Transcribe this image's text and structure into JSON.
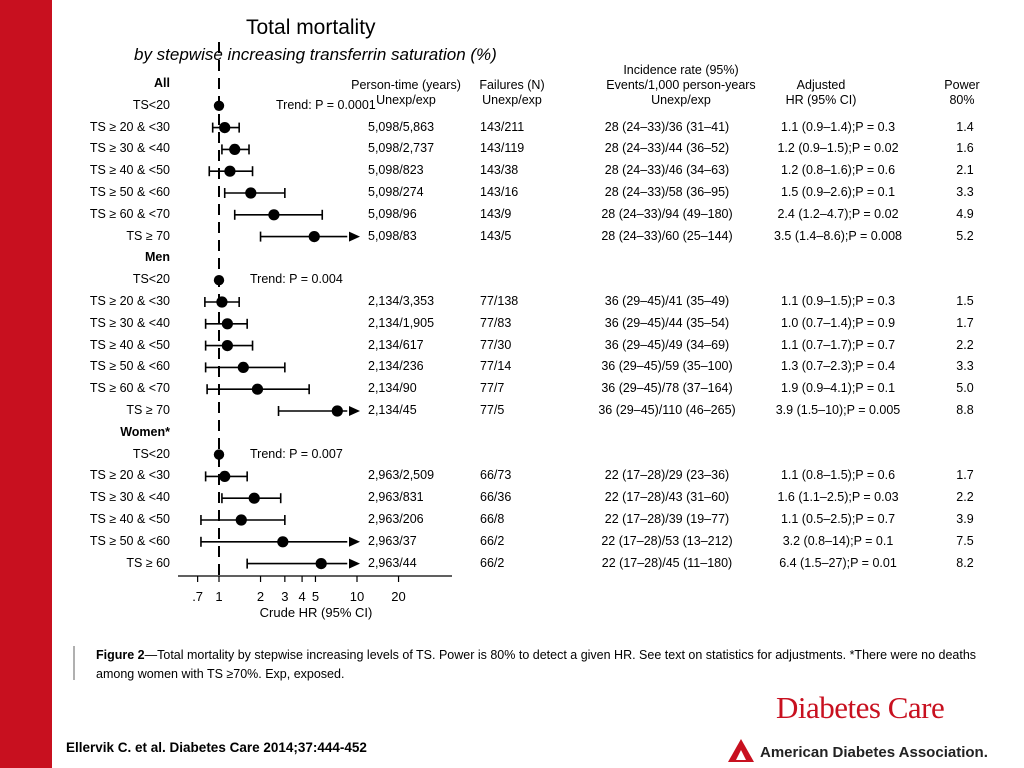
{
  "slide": {
    "citation": "Ellervik C. et al. Diabetes Care 2014;37:444-452",
    "journal_logo": "Diabetes Care",
    "publisher_logo": "American Diabetes Association.",
    "sidebar_color": "#c8101f"
  },
  "figure": {
    "title": "Total mortality",
    "subtitle": "by stepwise increasing transferrin saturation (%)",
    "caption_label": "Figure 2",
    "caption_text": "—Total mortality by stepwise increasing levels of TS. Power is 80% to detect a given HR. See text on statistics for adjustments. *There were no deaths among women with TS ≥70%. Exp, exposed."
  },
  "columns": {
    "person_time": [
      "Person-time (years)",
      "Unexp/exp"
    ],
    "failures": [
      "Failures (N)",
      "Unexp/exp"
    ],
    "incidence": [
      "Incidence rate (95%)",
      "Events/1,000 person-years",
      "Unexp/exp"
    ],
    "adjusted": [
      "Adjusted",
      "HR (95% CI)"
    ],
    "power": [
      "Power",
      "80%"
    ]
  },
  "chart_data": {
    "type": "forest",
    "xlabel": "Crude HR (95% CI)",
    "x_scale": "log",
    "x_ticks": [
      0.7,
      1,
      2,
      3,
      4,
      5,
      10,
      20
    ],
    "x_tick_labels": [
      ".7",
      "1",
      "2",
      "3",
      "4",
      "5",
      "10",
      "20"
    ],
    "reference_line": 1,
    "groups": [
      {
        "name": "All",
        "reference": "TS<20",
        "trend": "Trend: P = 0.0001",
        "rows": [
          {
            "label": "TS ≥ 20 & <30",
            "hr": 1.1,
            "lo": 0.9,
            "hi": 1.4,
            "arrow": false,
            "person_time": "5,098/5,863",
            "failures": "143/211",
            "incidence": "28 (24–33)/36 (31–41)",
            "adjusted": "1.1 (0.9–1.4);P = 0.3",
            "power": "1.4"
          },
          {
            "label": "TS ≥ 30 & <40",
            "hr": 1.3,
            "lo": 1.05,
            "hi": 1.65,
            "arrow": false,
            "person_time": "5,098/2,737",
            "failures": "143/119",
            "incidence": "28 (24–33)/44 (36–52)",
            "adjusted": "1.2 (0.9–1.5);P = 0.02",
            "power": "1.6"
          },
          {
            "label": "TS ≥ 40 & <50",
            "hr": 1.2,
            "lo": 0.85,
            "hi": 1.75,
            "arrow": false,
            "person_time": "5,098/823",
            "failures": "143/38",
            "incidence": "28 (24–33)/46 (34–63)",
            "adjusted": "1.2 (0.8–1.6);P = 0.6",
            "power": "2.1"
          },
          {
            "label": "TS ≥ 50 & <60",
            "hr": 1.7,
            "lo": 1.1,
            "hi": 3.0,
            "arrow": false,
            "person_time": "5,098/274",
            "failures": "143/16",
            "incidence": "28 (24–33)/58 (36–95)",
            "adjusted": "1.5 (0.9–2.6);P = 0.1",
            "power": "3.3"
          },
          {
            "label": "TS ≥ 60 & <70",
            "hr": 2.5,
            "lo": 1.3,
            "hi": 5.6,
            "arrow": false,
            "person_time": "5,098/96",
            "failures": "143/9",
            "incidence": "28 (24–33)/94 (49–180)",
            "adjusted": "2.4 (1.2–4.7);P = 0.02",
            "power": "4.9"
          },
          {
            "label": "TS ≥ 70",
            "hr": 4.9,
            "lo": 2.0,
            "hi": 8.5,
            "arrow": true,
            "person_time": "5,098/83",
            "failures": "143/5",
            "incidence": "28 (24–33)/60 (25–144)",
            "adjusted": "3.5 (1.4–8.6);P = 0.008",
            "power": "5.2"
          }
        ]
      },
      {
        "name": "Men",
        "reference": "TS<20",
        "trend": "Trend: P = 0.004",
        "rows": [
          {
            "label": "TS ≥ 20 & <30",
            "hr": 1.05,
            "lo": 0.79,
            "hi": 1.4,
            "arrow": false,
            "person_time": "2,134/3,353",
            "failures": "77/138",
            "incidence": "36 (29–45)/41 (35–49)",
            "adjusted": "1.1 (0.9–1.5);P = 0.3",
            "power": "1.5"
          },
          {
            "label": "TS ≥ 30 & <40",
            "hr": 1.15,
            "lo": 0.8,
            "hi": 1.6,
            "arrow": false,
            "person_time": "2,134/1,905",
            "failures": "77/83",
            "incidence": "36 (29–45)/44 (35–54)",
            "adjusted": "1.0 (0.7–1.4);P = 0.9",
            "power": "1.7"
          },
          {
            "label": "TS ≥ 40 & <50",
            "hr": 1.15,
            "lo": 0.8,
            "hi": 1.75,
            "arrow": false,
            "person_time": "2,134/617",
            "failures": "77/30",
            "incidence": "36 (29–45)/49 (34–69)",
            "adjusted": "1.1 (0.7–1.7);P = 0.7",
            "power": "2.2"
          },
          {
            "label": "TS ≥ 50 & <60",
            "hr": 1.5,
            "lo": 0.8,
            "hi": 3.0,
            "arrow": false,
            "person_time": "2,134/236",
            "failures": "77/14",
            "incidence": "36 (29–45)/59 (35–100)",
            "adjusted": "1.3 (0.7–2.3);P = 0.4",
            "power": "3.3"
          },
          {
            "label": "TS ≥ 60 & <70",
            "hr": 1.9,
            "lo": 0.82,
            "hi": 4.5,
            "arrow": false,
            "person_time": "2,134/90",
            "failures": "77/7",
            "incidence": "36 (29–45)/78 (37–164)",
            "adjusted": "1.9 (0.9–4.1);P = 0.1",
            "power": "5.0"
          },
          {
            "label": "TS ≥ 70",
            "hr": 7.2,
            "lo": 2.7,
            "hi": 8.5,
            "arrow": true,
            "person_time": "2,134/45",
            "failures": "77/5",
            "incidence": "36 (29–45)/110 (46–265)",
            "adjusted": "3.9 (1.5–10);P = 0.005",
            "power": "8.8"
          }
        ]
      },
      {
        "name": "Women*",
        "reference": "TS<20",
        "trend": "Trend: P = 0.007",
        "rows": [
          {
            "label": "TS ≥ 20 & <30",
            "hr": 1.1,
            "lo": 0.8,
            "hi": 1.6,
            "arrow": false,
            "person_time": "2,963/2,509",
            "failures": "66/73",
            "incidence": "22 (17–28)/29 (23–36)",
            "adjusted": "1.1 (0.8–1.5);P = 0.6",
            "power": "1.7"
          },
          {
            "label": "TS ≥ 30 & <40",
            "hr": 1.8,
            "lo": 1.05,
            "hi": 2.8,
            "arrow": false,
            "person_time": "2,963/831",
            "failures": "66/36",
            "incidence": "22 (17–28)/43 (31–60)",
            "adjusted": "1.6 (1.1–2.5);P = 0.03",
            "power": "2.2"
          },
          {
            "label": "TS ≥ 40 & <50",
            "hr": 1.45,
            "lo": 0.74,
            "hi": 3.0,
            "arrow": false,
            "person_time": "2,963/206",
            "failures": "66/8",
            "incidence": "22 (17–28)/39 (19–77)",
            "adjusted": "1.1 (0.5–2.5);P = 0.7",
            "power": "3.9"
          },
          {
            "label": "TS ≥ 50 & <60",
            "hr": 2.9,
            "lo": 0.74,
            "hi": 8.5,
            "arrow": true,
            "person_time": "2,963/37",
            "failures": "66/2",
            "incidence": "22 (17–28)/53 (13–212)",
            "adjusted": "3.2 (0.8–14);P = 0.1",
            "power": "7.5"
          },
          {
            "label": "TS ≥ 60",
            "hr": 5.5,
            "lo": 1.6,
            "hi": 8.5,
            "arrow": true,
            "person_time": "2,963/44",
            "failures": "66/2",
            "incidence": "22 (17–28)/45 (11–180)",
            "adjusted": "6.4 (1.5–27);P = 0.01",
            "power": "8.2"
          }
        ]
      }
    ]
  }
}
